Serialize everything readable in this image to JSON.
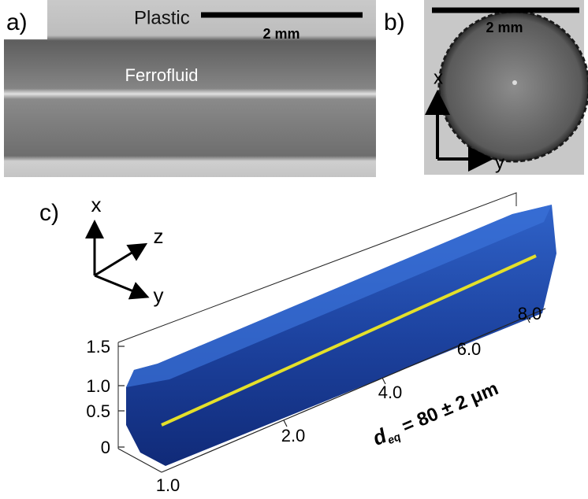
{
  "panels": [
    {
      "label": "a)",
      "plastic": "Plastic",
      "ferrofluid": "Ferrofluid",
      "scale_bar": "2 mm"
    },
    {
      "label": "b)",
      "scale_bar": "2 mm",
      "axes": [
        "x",
        "y"
      ]
    },
    {
      "label": "c)",
      "axes": [
        "x",
        "z",
        "y"
      ],
      "vertical_ticks": [
        "1.5",
        "1.0",
        "0.5",
        "0"
      ],
      "depth_tick": "1.0",
      "length_ticks": [
        "2.0",
        "4.0",
        "6.0",
        "8.0"
      ],
      "annotation": {
        "symbol": "d",
        "subscript": "eq",
        "text": "= 80 ± 2 μm"
      }
    }
  ]
}
